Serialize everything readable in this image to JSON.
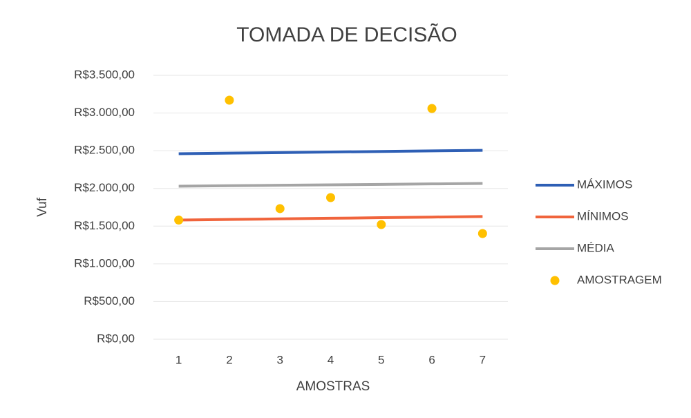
{
  "chart_data": {
    "type": "line",
    "title": "TOMADA DE DECISÃO",
    "x_label": "AMOSTRAS",
    "y_label": "Vuf",
    "categories": [
      "1",
      "2",
      "3",
      "4",
      "5",
      "6",
      "7"
    ],
    "ylim": [
      0,
      3500
    ],
    "yticks": [
      {
        "value": 0,
        "label": "R$0,00"
      },
      {
        "value": 500,
        "label": "R$500,00"
      },
      {
        "value": 1000,
        "label": "R$1.000,00"
      },
      {
        "value": 1500,
        "label": "R$1.500,00"
      },
      {
        "value": 2000,
        "label": "R$2.000,00"
      },
      {
        "value": 2500,
        "label": "R$2.500,00"
      },
      {
        "value": 3000,
        "label": "R$3.000,00"
      },
      {
        "value": 3500,
        "label": "R$3.500,00"
      }
    ],
    "grid": true,
    "legend": "right",
    "series": [
      {
        "name": "MÁXIMOS",
        "type": "line",
        "color": "#2e5fb5",
        "values": [
          2460,
          2468,
          2475,
          2483,
          2490,
          2498,
          2505
        ]
      },
      {
        "name": "MÍNIMOS",
        "type": "line",
        "color": "#f0643c",
        "values": [
          1580,
          1588,
          1596,
          1604,
          1612,
          1620,
          1628
        ]
      },
      {
        "name": "MÉDIA",
        "type": "line",
        "color": "#a5a5a5",
        "values": [
          2030,
          2036,
          2042,
          2048,
          2054,
          2060,
          2066
        ]
      },
      {
        "name": "AMOSTRAGEM",
        "type": "scatter",
        "color": "#ffc000",
        "values": [
          1580,
          3170,
          1732,
          1878,
          1521,
          3060,
          1402
        ]
      }
    ]
  }
}
